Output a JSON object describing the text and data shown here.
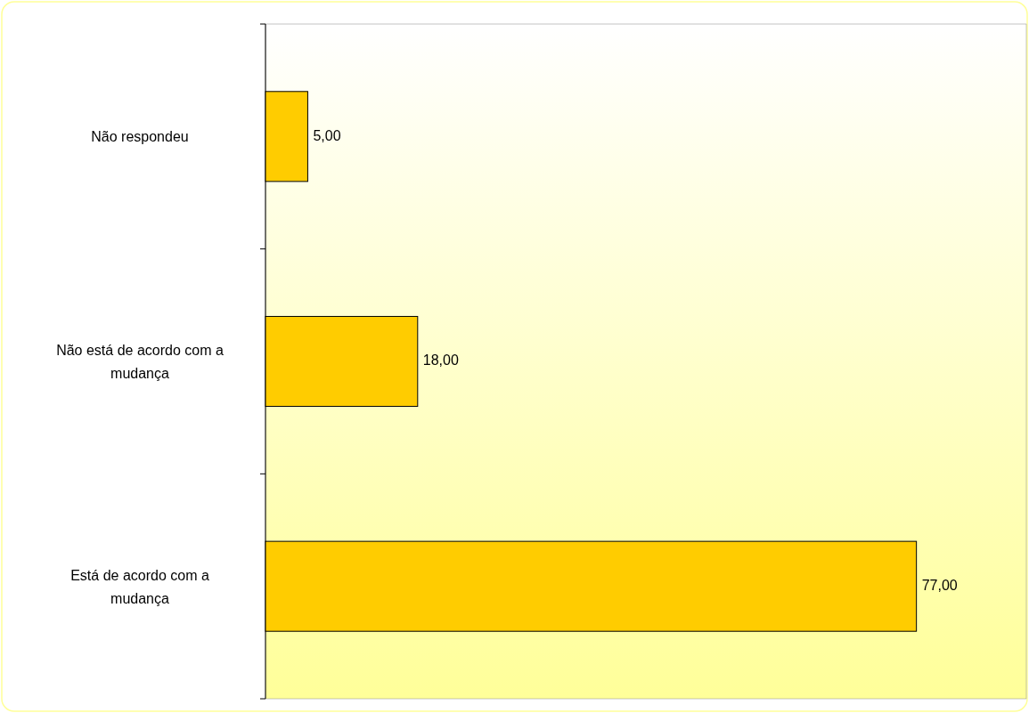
{
  "chart_data": {
    "type": "bar",
    "orientation": "horizontal",
    "categories": [
      "Não respondeu",
      "Não está de acordo com a mudança",
      "Está de acordo com a mudança"
    ],
    "values": [
      5,
      18,
      77
    ],
    "value_labels": [
      "5,00",
      "18,00",
      "77,00"
    ],
    "color": "#ffcc00",
    "xlim": [
      0,
      90
    ],
    "tick_labels": "y"
  }
}
